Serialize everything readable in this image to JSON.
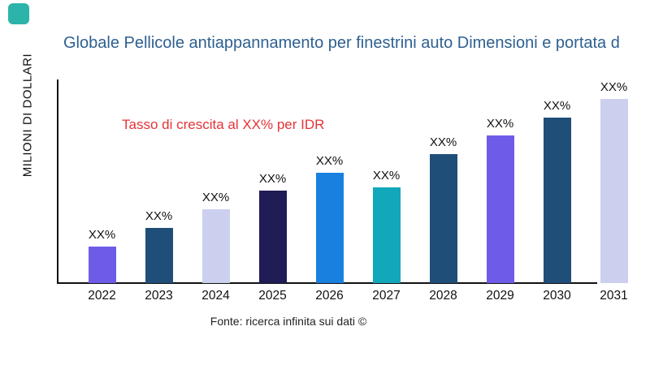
{
  "logo": {
    "color": "#2cb4aa"
  },
  "chart_data": {
    "type": "bar",
    "title": "Globale Pellicole antiappannamento per finestrini auto Dimensioni e portata d",
    "ylabel": "MILIONI DI DOLLARI",
    "xlabel": "",
    "categories": [
      "2022",
      "2023",
      "2024",
      "2025",
      "2026",
      "2027",
      "2028",
      "2029",
      "2030",
      "2031"
    ],
    "values": [
      20,
      30,
      40,
      50,
      60,
      52,
      70,
      80,
      90,
      100
    ],
    "values_note": "relative heights; no numeric y-axis scale shown in chart",
    "data_labels": [
      "XX%",
      "XX%",
      "XX%",
      "XX%",
      "XX%",
      "XX%",
      "XX%",
      "XX%",
      "XX%",
      "XX%"
    ],
    "bar_colors": [
      "#6e5ce8",
      "#1f4e79",
      "#ccd0ee",
      "#201c55",
      "#1a80e0",
      "#12a7ba",
      "#1f4e79",
      "#6e5ce8",
      "#1f4e79",
      "#ccd0ee"
    ],
    "annotation": "Tasso di crescita al XX% per IDR",
    "annotation_color": "#e43338",
    "title_color": "#2e6091",
    "legend": "none",
    "grid": false,
    "ylim": [
      0,
      110
    ],
    "source": "Fonte: ricerca infinita sui dati ©"
  }
}
